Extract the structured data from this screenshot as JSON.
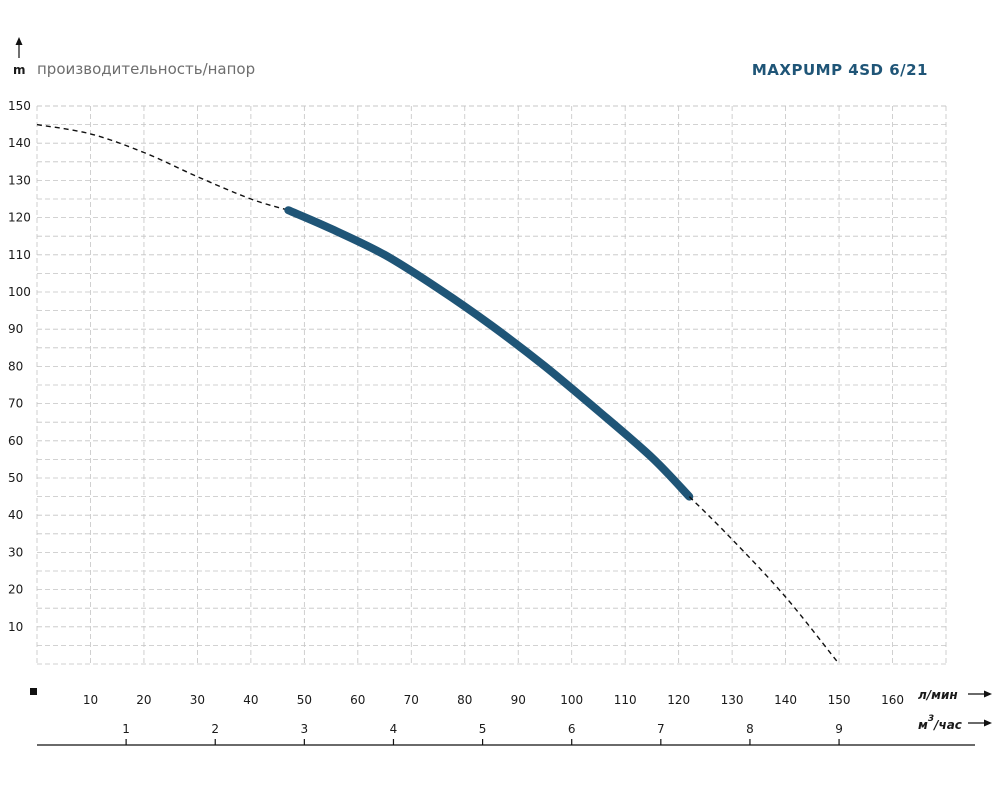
{
  "chart_data": {
    "type": "line",
    "title": "MAXPUMP 4SD 6/21",
    "subtitle": "производительность/напор",
    "ylabel": "m",
    "x_unit": "л/мин",
    "x2_unit_main": "м",
    "x2_unit_sup": "3",
    "x2_unit_rest": "/час",
    "xlim": [
      0,
      170
    ],
    "ylim": [
      0,
      150
    ],
    "grid": true,
    "y_ticks": [
      10,
      20,
      30,
      40,
      50,
      60,
      70,
      80,
      90,
      100,
      110,
      120,
      130,
      140,
      150
    ],
    "x_ticks": [
      10,
      20,
      30,
      40,
      50,
      60,
      70,
      80,
      90,
      100,
      110,
      120,
      130,
      140,
      150,
      160
    ],
    "x2_ticks": [
      1,
      2,
      3,
      4,
      5,
      6,
      7,
      8,
      9
    ],
    "series": [
      {
        "style": "dashed",
        "color": "#111111",
        "x": [
          0,
          10,
          20,
          30,
          40,
          47
        ],
        "y": [
          145,
          142.5,
          137.5,
          131,
          125,
          122
        ]
      },
      {
        "style": "operating-range",
        "color": "#1f5577",
        "x": [
          47,
          55,
          65,
          75,
          85,
          95,
          105,
          115,
          122
        ],
        "y": [
          122,
          117,
          110,
          101,
          91,
          80,
          68,
          55.5,
          45
        ]
      },
      {
        "style": "dashed",
        "color": "#111111",
        "x": [
          122,
          130,
          140,
          150
        ],
        "y": [
          45,
          33.5,
          18,
          0
        ]
      }
    ]
  }
}
